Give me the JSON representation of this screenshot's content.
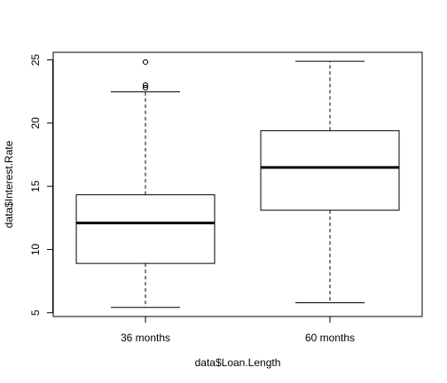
{
  "chart_data": {
    "type": "boxplot",
    "title": "",
    "xlabel": "data$Loan.Length",
    "ylabel": "data$Interest.Rate",
    "categories": [
      "36 months",
      "60 months"
    ],
    "ylim": [
      4.7,
      25.6
    ],
    "yticks": [
      5,
      10,
      15,
      20,
      25
    ],
    "grid": false,
    "legend": "none",
    "boxes": [
      {
        "category": "36 months",
        "whisker_low": 5.42,
        "q1": 8.9,
        "median": 12.1,
        "q3": 14.33,
        "whisker_high": 22.47,
        "outliers": [
          22.8,
          23.0,
          24.83
        ]
      },
      {
        "category": "60 months",
        "whisker_low": 5.79,
        "q1": 13.11,
        "median": 16.49,
        "q3": 19.4,
        "whisker_high": 24.89,
        "outliers": []
      }
    ]
  }
}
